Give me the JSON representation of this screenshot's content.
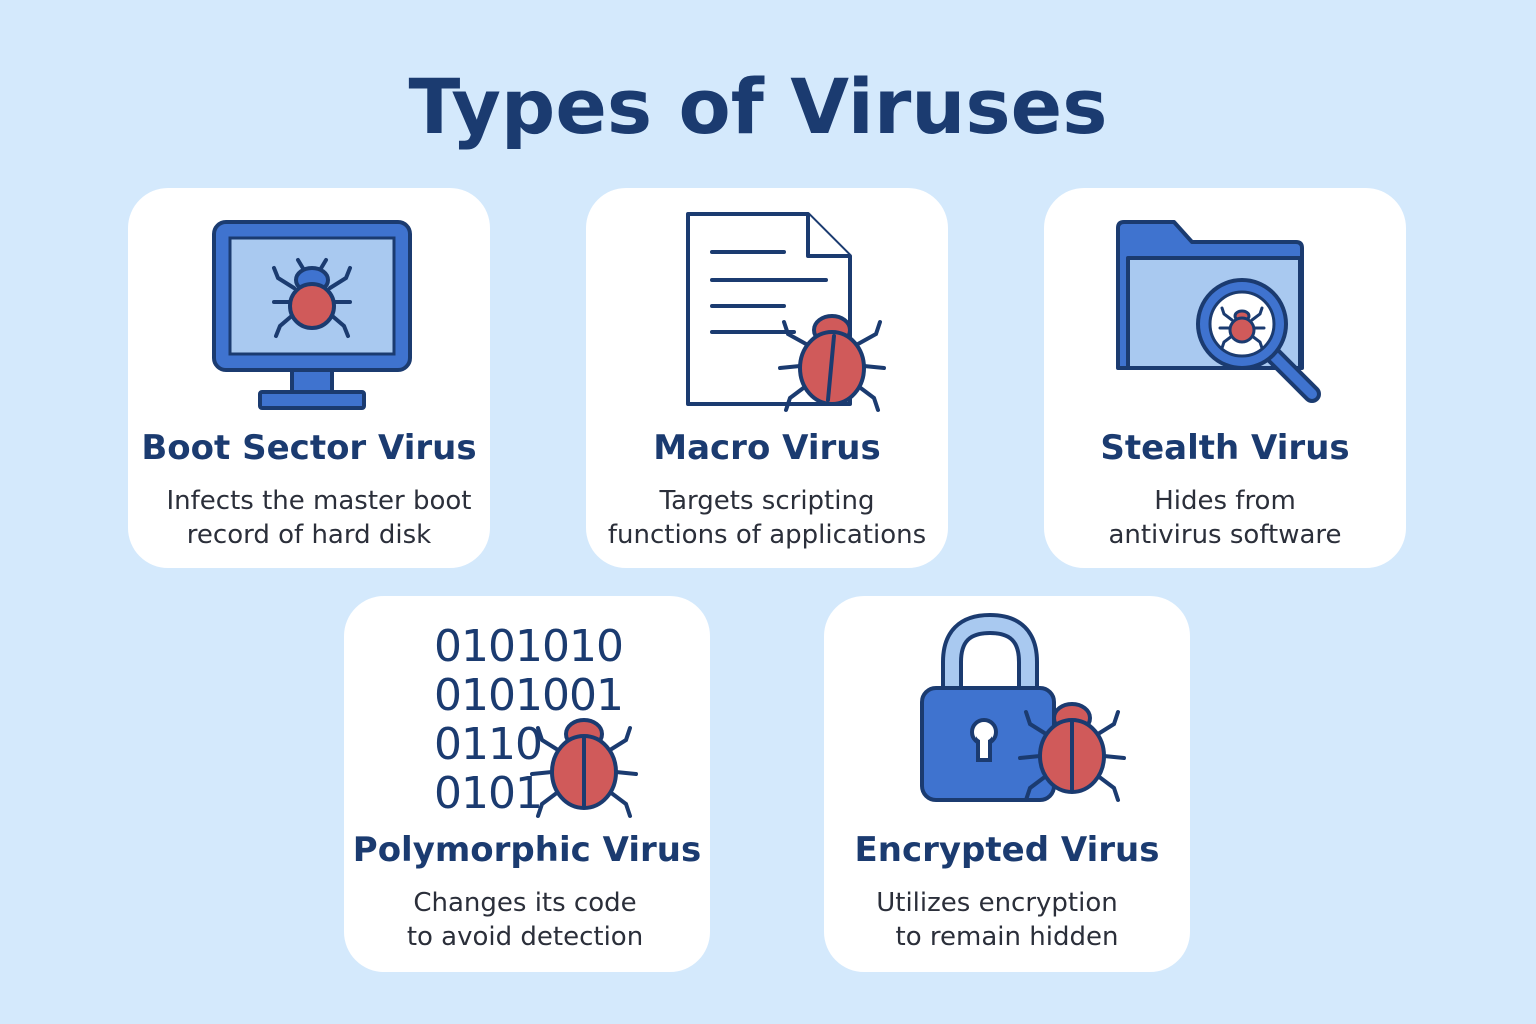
{
  "title": "Types of Viruses",
  "colors": {
    "background": "#d4e9fc",
    "card": "#ffffff",
    "title_text": "#1b3b70",
    "icon_blue": "#3f73cf",
    "icon_light_blue": "#a9c9f0",
    "icon_outline": "#1b3b70",
    "bug_red": "#d05a5a"
  },
  "cards": [
    {
      "title": "Boot Sector Virus",
      "desc_line1": "Infects the master boot",
      "desc_line2": "record of hard disk",
      "icon": "monitor-with-bug-icon"
    },
    {
      "title": "Macro Virus",
      "desc_line1": "Targets scripting",
      "desc_line2": "functions of applications",
      "icon": "document-with-bug-icon"
    },
    {
      "title": "Stealth Virus",
      "desc_line1": "Hides from",
      "desc_line2": "antivirus software",
      "icon": "folder-magnifier-bug-icon"
    },
    {
      "title": "Polymorphic Virus",
      "desc_line1": "Changes its code",
      "desc_line2": "to avoid detection",
      "icon": "binary-code-bug-icon",
      "binary_lines": [
        "0101010",
        "0101001",
        "0110",
        "0101"
      ]
    },
    {
      "title": "Encrypted Virus",
      "desc_line1": "Utilizes encryption",
      "desc_line2": "to remain hidden",
      "icon": "padlock-with-bug-icon"
    }
  ]
}
